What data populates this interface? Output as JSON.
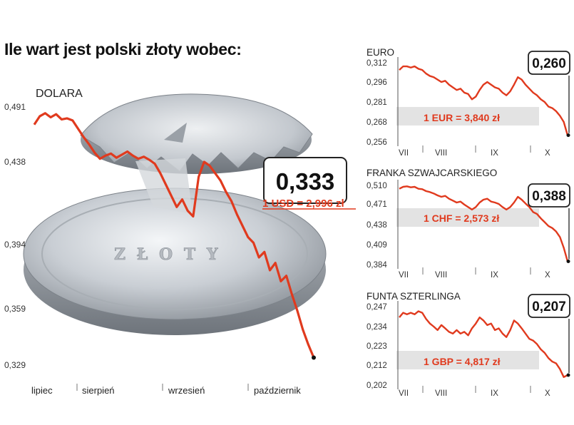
{
  "title": "Ile wart jest polski złoty wobec:",
  "colors": {
    "line": "#e03a1e",
    "band": "#e3e3e3",
    "text": "#222222"
  },
  "chart_data": [
    {
      "type": "line",
      "name": "DOLARA",
      "yticks": [
        "0,491",
        "0,438",
        "0,394",
        "0,359",
        "0,329"
      ],
      "ytick_values": [
        0.491,
        0.438,
        0.394,
        0.359,
        0.329
      ],
      "xlabels": [
        "lipiec",
        "sierpień",
        "wrzesień",
        "październik"
      ],
      "ylim": [
        0.329,
        0.491
      ],
      "last_value": "0,333",
      "conversion": "1 USD = 2,996 zł",
      "series": [
        {
          "values": [
            0.474,
            0.482,
            0.485,
            0.481,
            0.484,
            0.479,
            0.48,
            0.478,
            0.47,
            0.462,
            0.455,
            0.447,
            0.441,
            0.444,
            0.446,
            0.442,
            0.445,
            0.448,
            0.444,
            0.441,
            0.443,
            0.44,
            0.437,
            0.432,
            0.426,
            0.42,
            0.414,
            0.418,
            0.412,
            0.409,
            0.43,
            0.438,
            0.436,
            0.432,
            0.428,
            0.422,
            0.417,
            0.41,
            0.404,
            0.398,
            0.395,
            0.387,
            0.39,
            0.38,
            0.384,
            0.374,
            0.377,
            0.367,
            0.358,
            0.348,
            0.34,
            0.333
          ]
        }
      ]
    },
    {
      "type": "line",
      "name": "EURO",
      "yticks": [
        "0,312",
        "0,296",
        "0,281",
        "0,268",
        "0,256"
      ],
      "ytick_values": [
        0.312,
        0.296,
        0.281,
        0.268,
        0.256
      ],
      "xlabels": [
        "VII",
        "VIII",
        "IX",
        "X"
      ],
      "ylim": [
        0.256,
        0.312
      ],
      "last_value": "0,260",
      "conversion": "1 EUR = 3,840 zł",
      "series": [
        {
          "values": [
            0.306,
            0.309,
            0.309,
            0.308,
            0.309,
            0.307,
            0.306,
            0.303,
            0.301,
            0.3,
            0.298,
            0.296,
            0.297,
            0.294,
            0.292,
            0.29,
            0.291,
            0.288,
            0.287,
            0.283,
            0.285,
            0.29,
            0.294,
            0.296,
            0.294,
            0.292,
            0.291,
            0.288,
            0.286,
            0.289,
            0.294,
            0.3,
            0.298,
            0.294,
            0.291,
            0.288,
            0.286,
            0.283,
            0.281,
            0.278,
            0.277,
            0.275,
            0.272,
            0.268,
            0.26
          ]
        }
      ]
    },
    {
      "type": "line",
      "name": "FRANKA SZWAJCARSKIEGO",
      "yticks": [
        "0,510",
        "0,471",
        "0,438",
        "0,409",
        "0,384"
      ],
      "ytick_values": [
        0.51,
        0.471,
        0.438,
        0.409,
        0.384
      ],
      "xlabels": [
        "VII",
        "VIII",
        "IX",
        "X"
      ],
      "ylim": [
        0.384,
        0.51
      ],
      "last_value": "0,388",
      "conversion": "1 CHF = 2,573 zł",
      "series": [
        {
          "values": [
            0.503,
            0.507,
            0.508,
            0.506,
            0.507,
            0.503,
            0.502,
            0.498,
            0.496,
            0.493,
            0.489,
            0.486,
            0.488,
            0.482,
            0.478,
            0.474,
            0.476,
            0.47,
            0.466,
            0.462,
            0.466,
            0.474,
            0.48,
            0.482,
            0.476,
            0.474,
            0.471,
            0.466,
            0.462,
            0.466,
            0.474,
            0.486,
            0.48,
            0.472,
            0.466,
            0.458,
            0.455,
            0.448,
            0.442,
            0.436,
            0.433,
            0.428,
            0.42,
            0.405,
            0.388
          ]
        }
      ]
    },
    {
      "type": "line",
      "name": "FUNTA SZTERLINGA",
      "yticks": [
        "0,247",
        "0,234",
        "0,223",
        "0,212",
        "0,202"
      ],
      "ytick_values": [
        0.247,
        0.234,
        0.223,
        0.212,
        0.202
      ],
      "xlabels": [
        "VII",
        "VIII",
        "IX",
        "X"
      ],
      "ylim": [
        0.202,
        0.247
      ],
      "last_value": "0,207",
      "conversion": "1 GBP = 4,817 zł",
      "series": [
        {
          "values": [
            0.24,
            0.243,
            0.242,
            0.243,
            0.242,
            0.244,
            0.243,
            0.239,
            0.236,
            0.234,
            0.232,
            0.235,
            0.233,
            0.231,
            0.23,
            0.232,
            0.23,
            0.231,
            0.229,
            0.233,
            0.236,
            0.24,
            0.238,
            0.235,
            0.236,
            0.232,
            0.233,
            0.23,
            0.228,
            0.232,
            0.238,
            0.236,
            0.233,
            0.23,
            0.227,
            0.226,
            0.224,
            0.221,
            0.219,
            0.216,
            0.214,
            0.213,
            0.21,
            0.206,
            0.207
          ]
        }
      ]
    }
  ]
}
